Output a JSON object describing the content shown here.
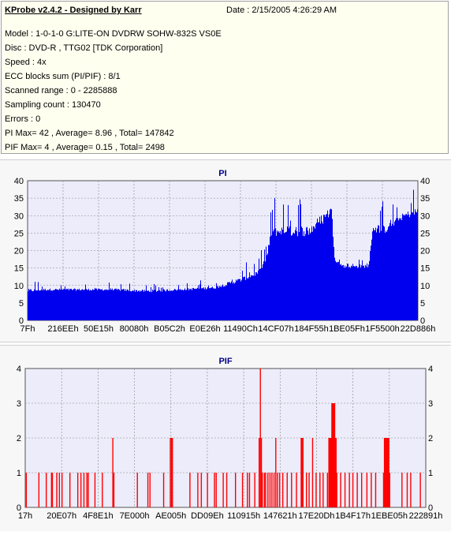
{
  "header": {
    "app_title": "KProbe v2.4.2 - Designed by Karr",
    "date": "Date : 2/15/2005 4:26:29 AM",
    "lines": [
      "Model : 1-0-1-0 G:LITE-ON DVDRW SOHW-832S  VS0E",
      "Disc : DVD-R , TTG02 [TDK Corporation]",
      "Speed : 4x",
      "ECC blocks sum (PI/PIF) : 8/1",
      "Scanned range : 0 - 2285888",
      "Sampling count : 130470",
      "Errors : 0",
      "PI Max= 42 , Average= 8.96 , Total= 147842",
      "PIF Max= 4 , Average= 0.15 , Total= 2498"
    ]
  },
  "colors": {
    "background": "#ffffff",
    "info_bg": "#fffff0",
    "panel_bg": "#f7f7f7",
    "plot_bg": "#ececfa",
    "pi_fill": "#0000ee",
    "pif_fill": "#ff0000",
    "title": "#00008b"
  },
  "chart_data": [
    {
      "type": "bar",
      "title": "PI",
      "ylim": [
        0,
        40
      ],
      "yticks": [
        0,
        5,
        10,
        15,
        20,
        25,
        30,
        35,
        40
      ],
      "xlim": [
        0,
        2285888
      ],
      "xtick_labels": [
        "7Fh",
        "216EEh",
        "50E15h",
        "80080h",
        "B05C2h",
        "E0E26h",
        "11490Ch",
        "14CF07h",
        "184F55h",
        "1BE05Fh",
        "1F5500h",
        "22D886h"
      ],
      "profile": {
        "x": [
          0,
          100000,
          300000,
          500000,
          700000,
          900000,
          1100000,
          1250000,
          1350000,
          1400000,
          1430000,
          1500000,
          1650000,
          1700000,
          1780000,
          1800000,
          1850000,
          1900000,
          1950000,
          2000000,
          2020000,
          2100000,
          2200000,
          2285888
        ],
        "baseline": [
          8,
          8.5,
          8.5,
          8.5,
          8,
          8.5,
          9,
          11,
          13,
          17,
          24,
          24,
          24,
          26,
          30,
          17,
          15,
          15,
          15,
          15,
          25,
          25,
          29,
          30
        ],
        "peak": [
          12,
          11,
          11,
          11,
          11,
          11,
          12,
          16,
          18,
          24,
          36,
          36,
          37,
          40,
          42,
          20,
          18,
          18,
          18,
          20,
          36,
          34,
          36,
          40
        ]
      },
      "grid": true,
      "color": "#0000ee"
    },
    {
      "type": "bar",
      "title": "PIF",
      "ylim": [
        0,
        4
      ],
      "yticks": [
        0,
        1,
        2,
        3,
        4
      ],
      "xlim": [
        0,
        2285888
      ],
      "xtick_labels": [
        "17h",
        "20E07h",
        "4F8E1h",
        "7E000h",
        "AE005h",
        "DD09Eh",
        "110915h",
        "147621h",
        "17E20Dh",
        "1B4F17h",
        "1EBE05h",
        "222891h"
      ],
      "nonzero_points": [
        {
          "x": 6000,
          "value": 1
        },
        {
          "x": 78000,
          "value": 1
        },
        {
          "x": 120000,
          "value": 1
        },
        {
          "x": 150000,
          "value": 1
        },
        {
          "x": 155000,
          "value": 1
        },
        {
          "x": 180000,
          "value": 1
        },
        {
          "x": 195000,
          "value": 1
        },
        {
          "x": 210000,
          "value": 1
        },
        {
          "x": 255000,
          "value": 1
        },
        {
          "x": 300000,
          "value": 1
        },
        {
          "x": 318000,
          "value": 1
        },
        {
          "x": 335000,
          "value": 1
        },
        {
          "x": 352000,
          "value": 1
        },
        {
          "x": 360000,
          "value": 1
        },
        {
          "x": 398000,
          "value": 1
        },
        {
          "x": 440000,
          "value": 1
        },
        {
          "x": 500000,
          "value": 2
        },
        {
          "x": 506000,
          "value": 1
        },
        {
          "x": 640000,
          "value": 1
        },
        {
          "x": 700000,
          "value": 1
        },
        {
          "x": 712000,
          "value": 1
        },
        {
          "x": 790000,
          "value": 1
        },
        {
          "x": 828000,
          "value": 2
        },
        {
          "x": 835000,
          "value": 2
        },
        {
          "x": 840000,
          "value": 2
        },
        {
          "x": 940000,
          "value": 1
        },
        {
          "x": 985000,
          "value": 1
        },
        {
          "x": 1005000,
          "value": 1
        },
        {
          "x": 1040000,
          "value": 1
        },
        {
          "x": 1080000,
          "value": 1
        },
        {
          "x": 1090000,
          "value": 1
        },
        {
          "x": 1130000,
          "value": 1
        },
        {
          "x": 1150000,
          "value": 1
        },
        {
          "x": 1200000,
          "value": 1
        },
        {
          "x": 1240000,
          "value": 1
        },
        {
          "x": 1268000,
          "value": 1
        },
        {
          "x": 1280000,
          "value": 1
        },
        {
          "x": 1310000,
          "value": 1
        },
        {
          "x": 1335000,
          "value": 2
        },
        {
          "x": 1342000,
          "value": 4
        },
        {
          "x": 1348000,
          "value": 2
        },
        {
          "x": 1353000,
          "value": 1
        },
        {
          "x": 1365000,
          "value": 1
        },
        {
          "x": 1372000,
          "value": 1
        },
        {
          "x": 1385000,
          "value": 1
        },
        {
          "x": 1397000,
          "value": 1
        },
        {
          "x": 1408000,
          "value": 1
        },
        {
          "x": 1420000,
          "value": 1
        },
        {
          "x": 1430000,
          "value": 2
        },
        {
          "x": 1440000,
          "value": 1
        },
        {
          "x": 1452000,
          "value": 1
        },
        {
          "x": 1470000,
          "value": 1
        },
        {
          "x": 1495000,
          "value": 1
        },
        {
          "x": 1520000,
          "value": 1
        },
        {
          "x": 1548000,
          "value": 1
        },
        {
          "x": 1575000,
          "value": 2
        },
        {
          "x": 1580000,
          "value": 2
        },
        {
          "x": 1585000,
          "value": 2
        },
        {
          "x": 1605000,
          "value": 1
        },
        {
          "x": 1620000,
          "value": 1
        },
        {
          "x": 1640000,
          "value": 2
        },
        {
          "x": 1660000,
          "value": 1
        },
        {
          "x": 1682000,
          "value": 1
        },
        {
          "x": 1700000,
          "value": 1
        },
        {
          "x": 1725000,
          "value": 1
        },
        {
          "x": 1733000,
          "value": 2
        },
        {
          "x": 1738000,
          "value": 2
        },
        {
          "x": 1742000,
          "value": 2
        },
        {
          "x": 1746000,
          "value": 2
        },
        {
          "x": 1750000,
          "value": 3
        },
        {
          "x": 1754000,
          "value": 3
        },
        {
          "x": 1758000,
          "value": 3
        },
        {
          "x": 1762000,
          "value": 3
        },
        {
          "x": 1766000,
          "value": 3
        },
        {
          "x": 1770000,
          "value": 2
        },
        {
          "x": 1774000,
          "value": 2
        },
        {
          "x": 1778000,
          "value": 1
        },
        {
          "x": 1800000,
          "value": 1
        },
        {
          "x": 1825000,
          "value": 1
        },
        {
          "x": 1850000,
          "value": 1
        },
        {
          "x": 1870000,
          "value": 1
        },
        {
          "x": 1895000,
          "value": 1
        },
        {
          "x": 1920000,
          "value": 1
        },
        {
          "x": 1950000,
          "value": 1
        },
        {
          "x": 1975000,
          "value": 1
        },
        {
          "x": 2000000,
          "value": 1
        },
        {
          "x": 2045000,
          "value": 1
        },
        {
          "x": 2050000,
          "value": 2
        },
        {
          "x": 2055000,
          "value": 2
        },
        {
          "x": 2060000,
          "value": 2
        },
        {
          "x": 2065000,
          "value": 2
        },
        {
          "x": 2070000,
          "value": 2
        },
        {
          "x": 2075000,
          "value": 2
        },
        {
          "x": 2080000,
          "value": 1
        },
        {
          "x": 2150000,
          "value": 1
        },
        {
          "x": 2180000,
          "value": 1
        },
        {
          "x": 2200000,
          "value": 1
        },
        {
          "x": 2255000,
          "value": 1
        }
      ],
      "grid": true,
      "color": "#ff0000"
    }
  ]
}
